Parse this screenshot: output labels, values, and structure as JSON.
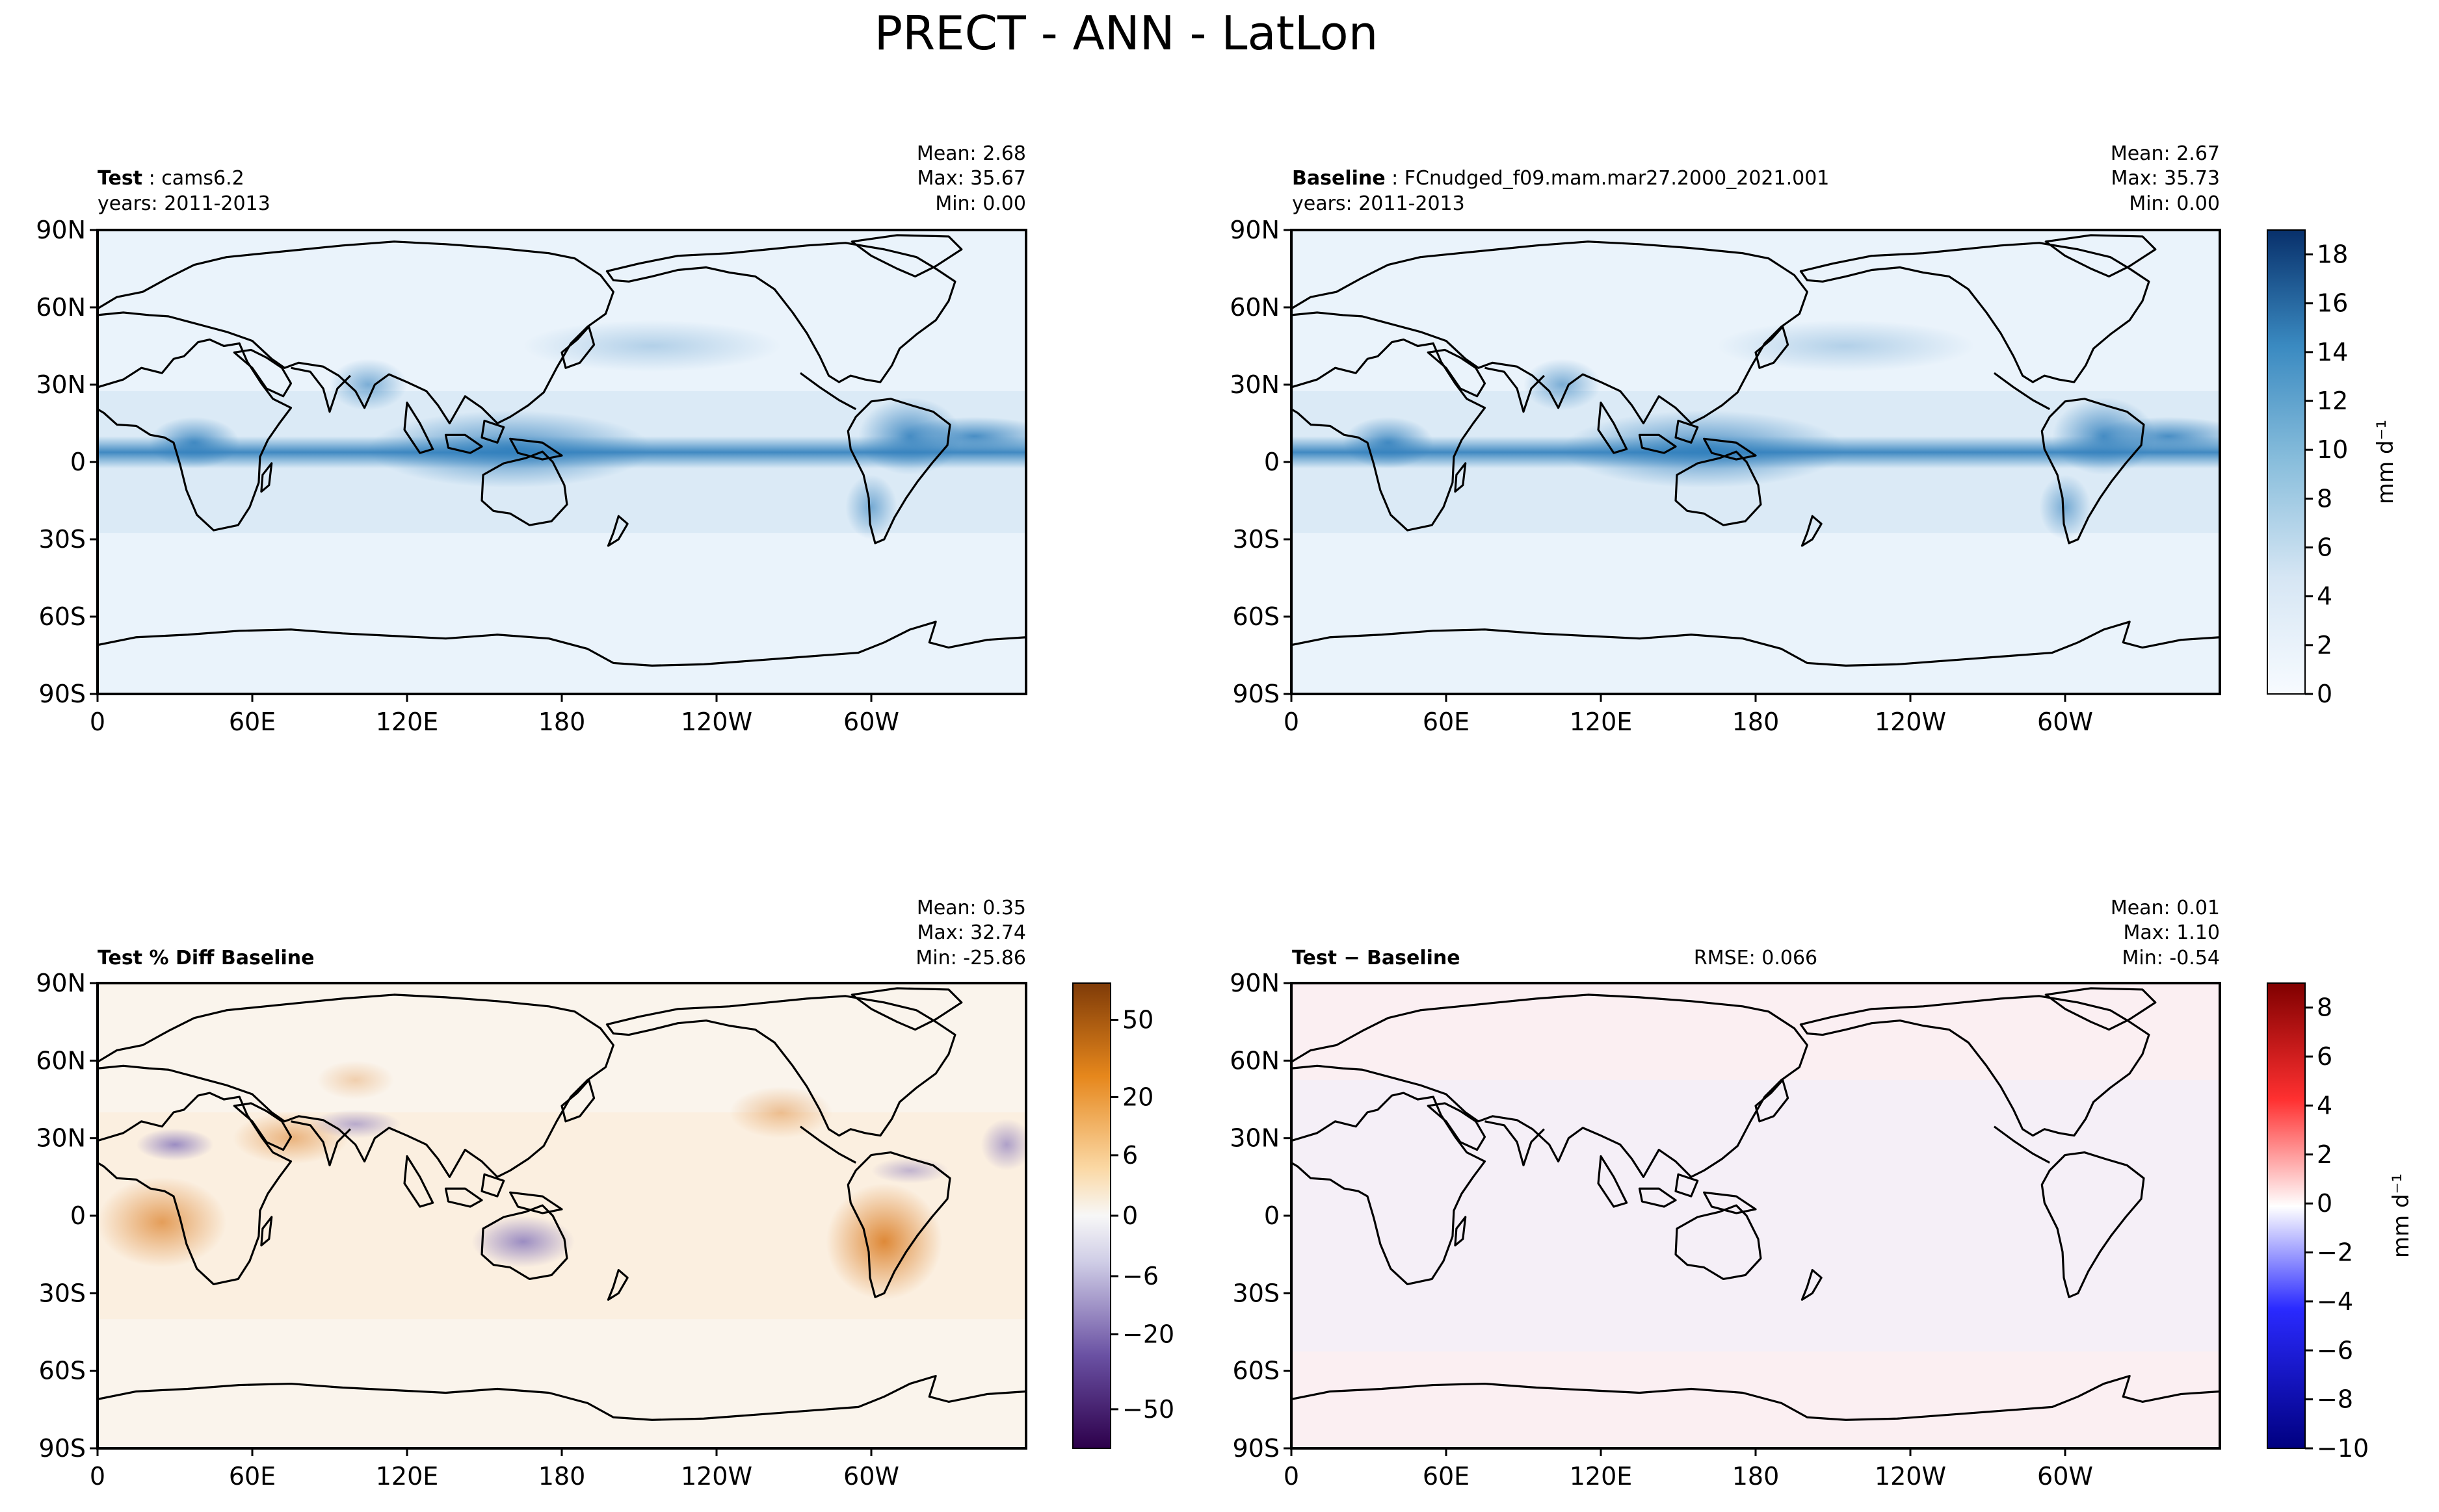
{
  "figure": {
    "title": "PRECT - ANN - LatLon"
  },
  "axes": {
    "lat_ticks": [
      "90N",
      "60N",
      "30N",
      "0",
      "30S",
      "60S",
      "90S"
    ],
    "lon_ticks": [
      "0",
      "60E",
      "120E",
      "180",
      "120W",
      "60W"
    ]
  },
  "panels": [
    {
      "id": "test",
      "title_bold": "Test",
      "title_sep": ":",
      "title_rest": "cams6.2",
      "years": "years: 2011-2013",
      "stats": [
        "Mean:  2.68",
        "Max: 35.67",
        "Min:  0.00"
      ],
      "style": "blues"
    },
    {
      "id": "baseline",
      "title_bold": "Baseline",
      "title_sep": ":",
      "title_rest": "FCnudged_f09.mam.mar27.2000_2021.001",
      "years": "years: 2011-2013",
      "stats": [
        "Mean:  2.67",
        "Max: 35.73",
        "Min:  0.00"
      ],
      "style": "blues"
    },
    {
      "id": "pctdiff",
      "title_bold": "Test % Diff Baseline",
      "stats": [
        "Mean:  0.35",
        "Max: 32.74",
        "Min: -25.86"
      ],
      "style": "puor"
    },
    {
      "id": "diff",
      "title_bold": "Test − Baseline",
      "rmse": "RMSE: 0.066",
      "stats": [
        "Mean:  0.01",
        "Max:  1.10",
        "Min: -0.54"
      ],
      "style": "seismic"
    }
  ],
  "colorbars": {
    "blues": {
      "label": "mm d⁻¹",
      "ticks": [
        "0",
        "2",
        "4",
        "6",
        "8",
        "10",
        "12",
        "14",
        "16",
        "18"
      ],
      "colors": {
        "low": "#f7fbff",
        "high": "#08306b"
      }
    },
    "puor": {
      "ticks": [
        "50",
        "20",
        "6",
        "0",
        "−6",
        "−20",
        "−50"
      ],
      "colors": {
        "top": "#7f3b08",
        "mid": "#f7f7f7",
        "bottom": "#2d004b"
      }
    },
    "seismic": {
      "label": "mm d⁻¹",
      "ticks": [
        "8",
        "6",
        "4",
        "2",
        "0",
        "−2",
        "−4",
        "−6",
        "−8",
        "−10"
      ],
      "colors": {
        "top": "#800000",
        "mid": "#ffffff",
        "bottom": "#000080"
      }
    }
  },
  "chart_data": [
    {
      "type": "heatmap",
      "title": "Test: cams6.2",
      "variable": "PRECT",
      "xlabel": "",
      "ylabel": "",
      "xlim": [
        0,
        360
      ],
      "ylim": [
        -90,
        90
      ],
      "color_range": [
        0,
        19
      ],
      "mean": 2.68,
      "max": 35.67,
      "min": 0.0,
      "units": "mm d-1"
    },
    {
      "type": "heatmap",
      "title": "Baseline: FCnudged_f09.mam.mar27.2000_2021.001",
      "variable": "PRECT",
      "xlim": [
        0,
        360
      ],
      "ylim": [
        -90,
        90
      ],
      "color_range": [
        0,
        19
      ],
      "mean": 2.67,
      "max": 35.73,
      "min": 0.0,
      "units": "mm d-1"
    },
    {
      "type": "heatmap",
      "title": "Test % Diff Baseline",
      "xlim": [
        0,
        360
      ],
      "ylim": [
        -90,
        90
      ],
      "color_levels": [
        -50,
        -20,
        -6,
        0,
        6,
        20,
        50
      ],
      "mean": 0.35,
      "max": 32.74,
      "min": -25.86
    },
    {
      "type": "heatmap",
      "title": "Test − Baseline",
      "xlim": [
        0,
        360
      ],
      "ylim": [
        -90,
        90
      ],
      "color_range": [
        -10,
        9
      ],
      "mean": 0.01,
      "max": 1.1,
      "min": -0.54,
      "rmse": 0.066,
      "units": "mm d-1"
    }
  ]
}
